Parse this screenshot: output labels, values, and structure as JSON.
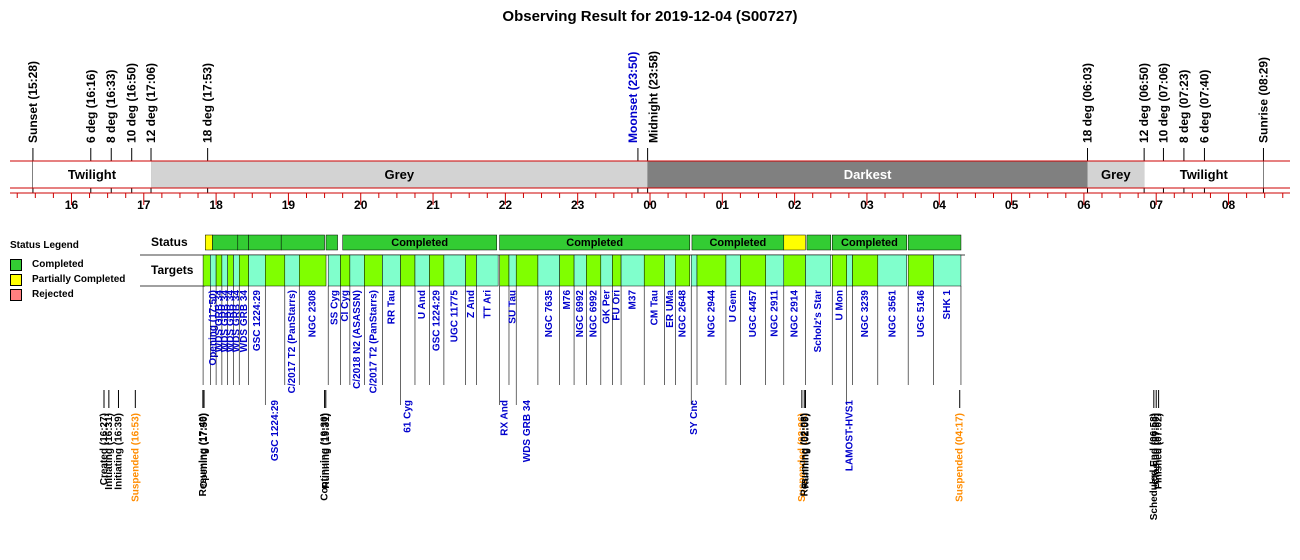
{
  "chart_data": {
    "type": "timeline",
    "title": "Observing Result for 2019-12-04 (S00727)",
    "colors": {
      "completed": "#33cc33",
      "partial": "#ffff00",
      "rejected": "#ff8080",
      "target_a": "#80ff00",
      "target_b": "#80ffcc",
      "twilight": "#ffffff",
      "grey": "#d3d3d3",
      "darkest": "#808080",
      "axis": "#cc0000",
      "event_black": "#000000",
      "event_blue": "#0000cc",
      "event_orange": "#ff8c00"
    },
    "sky_events": [
      {
        "label": "Sunset (15:28)",
        "t": 15.467
      },
      {
        "label": "6 deg (16:16)",
        "t": 16.267
      },
      {
        "label": "8 deg (16:33)",
        "t": 16.55
      },
      {
        "label": "10 deg (16:50)",
        "t": 16.833
      },
      {
        "label": "12 deg (17:06)",
        "t": 17.1
      },
      {
        "label": "18 deg (17:53)",
        "t": 17.883
      },
      {
        "label": "Moonset (23:50)",
        "t": 23.833,
        "color": "blue"
      },
      {
        "label": "Midnight (23:58)",
        "t": 23.967
      },
      {
        "label": "18 deg (06:03)",
        "t": 30.05
      },
      {
        "label": "12 deg (06:50)",
        "t": 30.833
      },
      {
        "label": "10 deg (07:06)",
        "t": 31.1
      },
      {
        "label": "8 deg (07:23)",
        "t": 31.383
      },
      {
        "label": "6 deg (07:40)",
        "t": 31.667
      },
      {
        "label": "Sunrise (08:29)",
        "t": 32.483
      }
    ],
    "phases": [
      {
        "label": "Twilight",
        "start": 15.467,
        "end": 17.1,
        "kind": "twilight"
      },
      {
        "label": "Grey",
        "start": 17.1,
        "end": 23.967,
        "kind": "grey"
      },
      {
        "label": "Darkest",
        "start": 23.967,
        "end": 30.05,
        "kind": "darkest"
      },
      {
        "label": "Grey",
        "start": 30.05,
        "end": 30.833,
        "kind": "grey"
      },
      {
        "label": "Twilight",
        "start": 30.833,
        "end": 32.483,
        "kind": "twilight"
      }
    ],
    "hour_ticks": [
      {
        "label": "16",
        "t": 16
      },
      {
        "label": "17",
        "t": 17
      },
      {
        "label": "18",
        "t": 18
      },
      {
        "label": "19",
        "t": 19
      },
      {
        "label": "20",
        "t": 20
      },
      {
        "label": "21",
        "t": 21
      },
      {
        "label": "22",
        "t": 22
      },
      {
        "label": "23",
        "t": 23
      },
      {
        "label": "00",
        "t": 24
      },
      {
        "label": "01",
        "t": 25
      },
      {
        "label": "02",
        "t": 26
      },
      {
        "label": "03",
        "t": 27
      },
      {
        "label": "04",
        "t": 28
      },
      {
        "label": "05",
        "t": 29
      },
      {
        "label": "06",
        "t": 30
      },
      {
        "label": "07",
        "t": 31
      },
      {
        "label": "08",
        "t": 32
      }
    ],
    "xlim": [
      15.15,
      32.85
    ],
    "row_labels": {
      "status": "Status",
      "targets": "Targets"
    },
    "legend": {
      "title": "Status Legend",
      "items": [
        {
          "label": "Completed",
          "color": "#33cc33"
        },
        {
          "label": "Partially Completed",
          "color": "#ffff00"
        },
        {
          "label": "Rejected",
          "color": "#ff8080"
        }
      ]
    },
    "status_blocks": [
      {
        "start": 17.85,
        "end": 17.95,
        "status": "partial",
        "label": ""
      },
      {
        "start": 17.95,
        "end": 18.3,
        "status": "completed",
        "label": ""
      },
      {
        "start": 18.3,
        "end": 18.45,
        "status": "completed",
        "label": ""
      },
      {
        "start": 18.45,
        "end": 18.9,
        "status": "completed",
        "label": ""
      },
      {
        "start": 18.9,
        "end": 19.5,
        "status": "completed",
        "label": ""
      },
      {
        "start": 19.52,
        "end": 19.68,
        "status": "completed",
        "label": ""
      },
      {
        "start": 19.75,
        "end": 21.88,
        "status": "completed",
        "label": "Completed"
      },
      {
        "start": 21.92,
        "end": 24.55,
        "status": "completed",
        "label": "Completed"
      },
      {
        "start": 24.58,
        "end": 25.85,
        "status": "completed",
        "label": "Completed"
      },
      {
        "start": 25.85,
        "end": 26.15,
        "status": "partial",
        "label": ""
      },
      {
        "start": 26.17,
        "end": 26.5,
        "status": "completed",
        "label": ""
      },
      {
        "start": 26.52,
        "end": 27.55,
        "status": "completed",
        "label": "Completed"
      },
      {
        "start": 27.57,
        "end": 28.3,
        "status": "completed",
        "label": ""
      }
    ],
    "targets": [
      {
        "start": 17.82,
        "end": 17.92,
        "label": "",
        "tier": 0
      },
      {
        "start": 17.92,
        "end": 18.0,
        "label": "Opening (17:50)",
        "tier": 0
      },
      {
        "start": 18.0,
        "end": 18.08,
        "label": "WDS GRB 34",
        "tier": 0
      },
      {
        "start": 18.08,
        "end": 18.16,
        "label": "WDS GRB 34",
        "tier": 0
      },
      {
        "start": 18.16,
        "end": 18.24,
        "label": "WDS GRB 34",
        "tier": 0
      },
      {
        "start": 18.24,
        "end": 18.32,
        "label": "WDS GRB 34",
        "tier": 0
      },
      {
        "start": 18.32,
        "end": 18.45,
        "label": "WDS GRB 34",
        "tier": 0
      },
      {
        "start": 18.45,
        "end": 18.68,
        "label": "GSC 1224:29",
        "tier": 0
      },
      {
        "start": 18.68,
        "end": 18.95,
        "label": "GSC 1224:29",
        "tier": 1
      },
      {
        "start": 18.95,
        "end": 19.15,
        "label": "C/2017 T2 (PanStarrs)",
        "tier": 0
      },
      {
        "start": 19.15,
        "end": 19.52,
        "label": "NGC 2308",
        "tier": 0
      },
      {
        "start": 19.55,
        "end": 19.72,
        "label": "SS Cyg",
        "tier": 0
      },
      {
        "start": 19.72,
        "end": 19.85,
        "label": "CI Cyg",
        "tier": 0
      },
      {
        "start": 19.85,
        "end": 20.05,
        "label": "C/2018 N2 (ASASSN)",
        "tier": 0
      },
      {
        "start": 20.05,
        "end": 20.3,
        "label": "C/2017 T2 (PanStarrs)",
        "tier": 0
      },
      {
        "start": 20.3,
        "end": 20.55,
        "label": "RR Tau",
        "tier": 0
      },
      {
        "start": 20.55,
        "end": 20.75,
        "label": "61 Cyg",
        "tier": 1
      },
      {
        "start": 20.75,
        "end": 20.95,
        "label": "U And",
        "tier": 0
      },
      {
        "start": 20.95,
        "end": 21.15,
        "label": "GSC 1224:29",
        "tier": 0
      },
      {
        "start": 21.15,
        "end": 21.45,
        "label": "UGC 11775",
        "tier": 0
      },
      {
        "start": 21.45,
        "end": 21.6,
        "label": "Z And",
        "tier": 0
      },
      {
        "start": 21.6,
        "end": 21.9,
        "label": "TT Ari",
        "tier": 0
      },
      {
        "start": 21.92,
        "end": 22.05,
        "label": "RX And",
        "tier": 1
      },
      {
        "start": 22.05,
        "end": 22.15,
        "label": "SU Tau",
        "tier": 0
      },
      {
        "start": 22.15,
        "end": 22.45,
        "label": "WDS GRB 34",
        "tier": 1
      },
      {
        "start": 22.45,
        "end": 22.75,
        "label": "NGC 7635",
        "tier": 0
      },
      {
        "start": 22.75,
        "end": 22.95,
        "label": "M76",
        "tier": 0
      },
      {
        "start": 22.95,
        "end": 23.12,
        "label": "NGC 6992",
        "tier": 0
      },
      {
        "start": 23.12,
        "end": 23.32,
        "label": "NGC 6992",
        "tier": 0
      },
      {
        "start": 23.32,
        "end": 23.48,
        "label": "GK Per",
        "tier": 0
      },
      {
        "start": 23.48,
        "end": 23.6,
        "label": "FU Ori",
        "tier": 0
      },
      {
        "start": 23.6,
        "end": 23.92,
        "label": "M37",
        "tier": 0
      },
      {
        "start": 23.92,
        "end": 24.2,
        "label": "CM Tau",
        "tier": 0
      },
      {
        "start": 24.2,
        "end": 24.35,
        "label": "ER UMa",
        "tier": 0
      },
      {
        "start": 24.35,
        "end": 24.55,
        "label": "NGC 2648",
        "tier": 0
      },
      {
        "start": 24.57,
        "end": 24.65,
        "label": "SY Cnc",
        "tier": 1
      },
      {
        "start": 24.65,
        "end": 25.05,
        "label": "NGC 2944",
        "tier": 0
      },
      {
        "start": 25.05,
        "end": 25.25,
        "label": "U Gem",
        "tier": 0
      },
      {
        "start": 25.25,
        "end": 25.6,
        "label": "UGC 4457",
        "tier": 0
      },
      {
        "start": 25.6,
        "end": 25.85,
        "label": "NGC 2911",
        "tier": 0
      },
      {
        "start": 25.85,
        "end": 26.15,
        "label": "NGC 2914",
        "tier": 0
      },
      {
        "start": 26.15,
        "end": 26.5,
        "label": "Scholz's Star",
        "tier": 0
      },
      {
        "start": 26.52,
        "end": 26.72,
        "label": "U Mon",
        "tier": 0
      },
      {
        "start": 26.72,
        "end": 26.8,
        "label": "LAMOST-HVS1",
        "tier": 1
      },
      {
        "start": 26.8,
        "end": 27.15,
        "label": "NGC 3239",
        "tier": 0
      },
      {
        "start": 27.15,
        "end": 27.55,
        "label": "NGC 3561",
        "tier": 0
      },
      {
        "start": 27.57,
        "end": 27.92,
        "label": "UGC 5146",
        "tier": 0
      },
      {
        "start": 27.92,
        "end": 28.3,
        "label": "SHK 1",
        "tier": 0
      }
    ],
    "events": [
      {
        "label": "Created (16:27)",
        "t": 16.45,
        "color": "black"
      },
      {
        "label": "Initiating (16:31)",
        "t": 16.517,
        "color": "black"
      },
      {
        "label": "Initiating (16:39)",
        "t": 16.65,
        "color": "black"
      },
      {
        "label": "Suspended (16:53)",
        "t": 16.883,
        "color": "orange"
      },
      {
        "label": "Resuming (17:49)",
        "t": 17.817,
        "color": "black"
      },
      {
        "label": "Opening (17:50)",
        "t": 17.833,
        "color": "black"
      },
      {
        "label": "Continuing (19:30)",
        "t": 19.5,
        "color": "black"
      },
      {
        "label": "Running (19:31)",
        "t": 19.517,
        "color": "black"
      },
      {
        "label": "Suspended (02:06)",
        "t": 26.1,
        "color": "orange"
      },
      {
        "label": "Resuming (02:08)",
        "t": 26.133,
        "color": "black"
      },
      {
        "label": "Running (02:09)",
        "t": 26.15,
        "color": "black"
      },
      {
        "label": "Suspended (04:17)",
        "t": 28.283,
        "color": "orange"
      },
      {
        "label": "Scheduled End (06:58)",
        "t": 30.967,
        "color": "black"
      },
      {
        "label": "Closing (07:00)",
        "t": 31.0,
        "color": "black"
      },
      {
        "label": "Finished (07:02)",
        "t": 31.033,
        "color": "black"
      }
    ]
  }
}
